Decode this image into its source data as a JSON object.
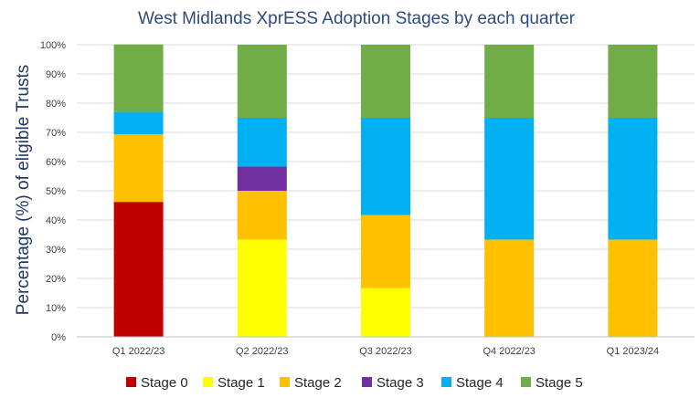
{
  "chart_data": {
    "type": "bar",
    "stacked": true,
    "title": "West Midlands XprESS Adoption Stages by each quarter",
    "xlabel": "",
    "ylabel": "Percentage (%) of eligible Trusts",
    "ylim": [
      0,
      100
    ],
    "yticks": [
      "0%",
      "10%",
      "20%",
      "30%",
      "40%",
      "50%",
      "60%",
      "70%",
      "80%",
      "90%",
      "100%"
    ],
    "grid": true,
    "legend_position": "bottom",
    "categories": [
      "Q1 2022/23",
      "Q2 2022/23",
      "Q3 2022/23",
      "Q4 2022/23",
      "Q1 2023/24"
    ],
    "series": [
      {
        "name": "Stage 0",
        "color": "#c00000",
        "values": [
          46.2,
          0,
          0,
          0,
          0
        ]
      },
      {
        "name": "Stage 1",
        "color": "#ffff00",
        "values": [
          0,
          33.3,
          16.7,
          0,
          0
        ]
      },
      {
        "name": "Stage 2",
        "color": "#ffc000",
        "values": [
          23.1,
          16.7,
          25,
          33.3,
          33.3
        ]
      },
      {
        "name": "Stage 3",
        "color": "#7030a0",
        "values": [
          0,
          8.3,
          0,
          0,
          0
        ]
      },
      {
        "name": "Stage 4",
        "color": "#00b0f0",
        "values": [
          7.7,
          16.7,
          33.3,
          41.7,
          41.7
        ]
      },
      {
        "name": "Stage 5",
        "color": "#70ad47",
        "values": [
          23.1,
          25,
          25,
          25,
          25
        ]
      }
    ]
  }
}
